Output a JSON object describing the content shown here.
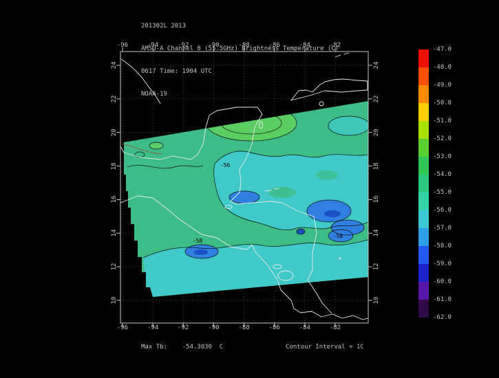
{
  "header": {
    "line1": "201302L 2013",
    "line2": "AMSU-A Channel 8 (55.5GHz) Brightness Temperature (C)",
    "line3": "0617 Time: 1904 UTC",
    "line4": "NOAA-19"
  },
  "footer": {
    "max_tb_text": "Max Tb:    -54.3030  C",
    "contour_interval_text": "Contour Interval = 1C"
  },
  "chart_data": {
    "type": "heatmap",
    "title": "AMSU-A Channel 8 (55.5GHz) Brightness Temperature (C)",
    "date_label": "201302L 2013",
    "time_label": "0617 Time: 1904 UTC",
    "satellite": "NOAA-19",
    "x_tick_values": [
      -96,
      -94,
      -92,
      -90,
      -88,
      -86,
      -84,
      -82
    ],
    "x_tick_labels": [
      "-96",
      "-94",
      "-92",
      "-90",
      "-88",
      "-86",
      "-84",
      "-82"
    ],
    "y_tick_values": [
      24,
      22,
      20,
      18,
      16,
      14,
      12,
      10
    ],
    "y_tick_labels": [
      "24",
      "22",
      "20",
      "18",
      "16",
      "14",
      "12",
      "10"
    ],
    "xlim": [
      -96.2,
      -79.8
    ],
    "ylim": [
      8.6,
      24.8
    ],
    "grid": true,
    "max_tb_c": -54.303,
    "contour_interval_c": 1,
    "contour_labels": [
      "-55",
      "-56",
      "-58",
      "-58"
    ],
    "colorbar": {
      "tick_values": [
        -47,
        -48,
        -49,
        -50,
        -51,
        -52,
        -53,
        -54,
        -55,
        -56,
        -57,
        -58,
        -59,
        -60,
        -61,
        -62
      ],
      "tick_labels": [
        "-47.0",
        "-48.0",
        "-49.0",
        "-50.0",
        "-51.0",
        "-52.0",
        "-53.0",
        "-54.0",
        "-55.0",
        "-56.0",
        "-57.0",
        "-58.0",
        "-59.0",
        "-60.0",
        "-61.0",
        "-62.0"
      ],
      "segment_colors": [
        "#f01000",
        "#ff5000",
        "#ff8c00",
        "#ffd000",
        "#a8e000",
        "#58d030",
        "#30c855",
        "#2cc87e",
        "#34d2a8",
        "#3cc8d2",
        "#2ea0e6",
        "#2358f0",
        "#1a24c8",
        "#5a18aa",
        "#2e0a46"
      ]
    },
    "swath_colors": {
      "base_green": "#3dbd85",
      "warm_green": "#5ace63",
      "cyan": "#3fc9c9",
      "blue": "#2f80e0",
      "deep_blue": "#1b50c8"
    }
  }
}
